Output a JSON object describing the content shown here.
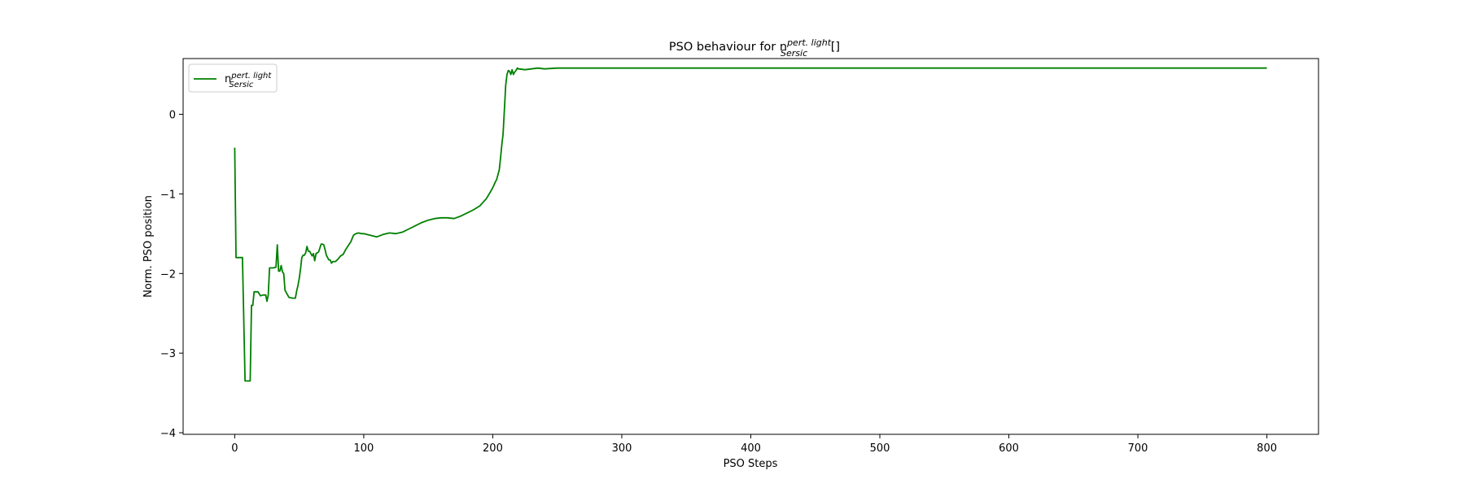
{
  "chart_data": {
    "type": "line",
    "title": {
      "prefix": "PSO behaviour for n",
      "sup": "pert. light",
      "sub": "Sersic",
      "suffix": " []"
    },
    "xlabel": "PSO Steps",
    "ylabel": "Norm. PSO position",
    "xlim": [
      -40,
      840
    ],
    "ylim": [
      -4.02,
      0.7
    ],
    "xticks": [
      0,
      100,
      200,
      300,
      400,
      500,
      600,
      700,
      800
    ],
    "yticks": [
      0,
      -1,
      -2,
      -3,
      -4
    ],
    "ytick_labels": [
      "0",
      "−1",
      "−2",
      "−3",
      "−4"
    ],
    "grid": false,
    "legend_position": "top-left",
    "series": [
      {
        "name": {
          "base": "n",
          "sup": "pert. light",
          "sub": "Sersic"
        },
        "color": "#008000",
        "x": [
          0,
          1,
          5,
          6,
          8,
          10,
          11,
          12,
          13,
          14,
          15,
          16,
          18,
          20,
          22,
          24,
          25,
          26,
          27,
          29,
          30,
          32,
          33,
          34,
          35,
          36,
          37,
          38,
          39,
          40,
          42,
          45,
          47,
          48,
          49,
          50,
          51,
          52,
          53,
          54,
          55,
          56,
          57,
          58,
          60,
          61,
          62,
          63,
          65,
          67,
          68,
          69,
          70,
          71,
          72,
          73,
          74,
          75,
          76,
          78,
          80,
          82,
          84,
          86,
          88,
          90,
          92,
          94,
          96,
          98,
          100,
          105,
          110,
          115,
          120,
          125,
          130,
          135,
          140,
          145,
          150,
          155,
          160,
          165,
          170,
          175,
          180,
          185,
          190,
          195,
          198,
          200,
          202,
          203,
          204,
          205,
          206,
          207,
          208,
          209,
          210,
          211,
          212,
          213,
          214,
          215,
          216,
          217,
          218,
          219,
          220,
          225,
          230,
          235,
          240,
          250,
          260,
          270,
          280,
          290,
          300,
          320,
          350,
          400,
          450,
          500,
          600,
          700,
          800
        ],
        "y": [
          -0.42,
          -1.8,
          -1.8,
          -1.8,
          -3.35,
          -3.35,
          -3.35,
          -3.35,
          -2.4,
          -2.4,
          -2.23,
          -2.23,
          -2.23,
          -2.28,
          -2.27,
          -2.27,
          -2.35,
          -2.27,
          -1.93,
          -1.93,
          -1.93,
          -1.92,
          -1.64,
          -1.97,
          -1.97,
          -1.9,
          -1.98,
          -2.0,
          -2.21,
          -2.24,
          -2.3,
          -2.31,
          -2.31,
          -2.22,
          -2.15,
          -2.06,
          -1.94,
          -1.8,
          -1.77,
          -1.77,
          -1.74,
          -1.66,
          -1.72,
          -1.72,
          -1.78,
          -1.75,
          -1.84,
          -1.75,
          -1.73,
          -1.63,
          -1.63,
          -1.64,
          -1.7,
          -1.77,
          -1.8,
          -1.83,
          -1.83,
          -1.87,
          -1.85,
          -1.85,
          -1.82,
          -1.78,
          -1.76,
          -1.7,
          -1.65,
          -1.6,
          -1.52,
          -1.5,
          -1.49,
          -1.5,
          -1.5,
          -1.52,
          -1.54,
          -1.51,
          -1.49,
          -1.5,
          -1.48,
          -1.44,
          -1.4,
          -1.36,
          -1.33,
          -1.31,
          -1.3,
          -1.3,
          -1.31,
          -1.28,
          -1.24,
          -1.2,
          -1.15,
          -1.06,
          -0.98,
          -0.92,
          -0.85,
          -0.82,
          -0.76,
          -0.7,
          -0.55,
          -0.38,
          -0.25,
          0.05,
          0.36,
          0.5,
          0.55,
          0.54,
          0.5,
          0.56,
          0.5,
          0.53,
          0.55,
          0.58,
          0.57,
          0.56,
          0.57,
          0.58,
          0.57,
          0.58,
          0.58,
          0.58,
          0.58,
          0.58,
          0.58,
          0.58,
          0.58,
          0.58,
          0.58,
          0.58,
          0.58,
          0.58,
          0.58
        ]
      }
    ]
  }
}
